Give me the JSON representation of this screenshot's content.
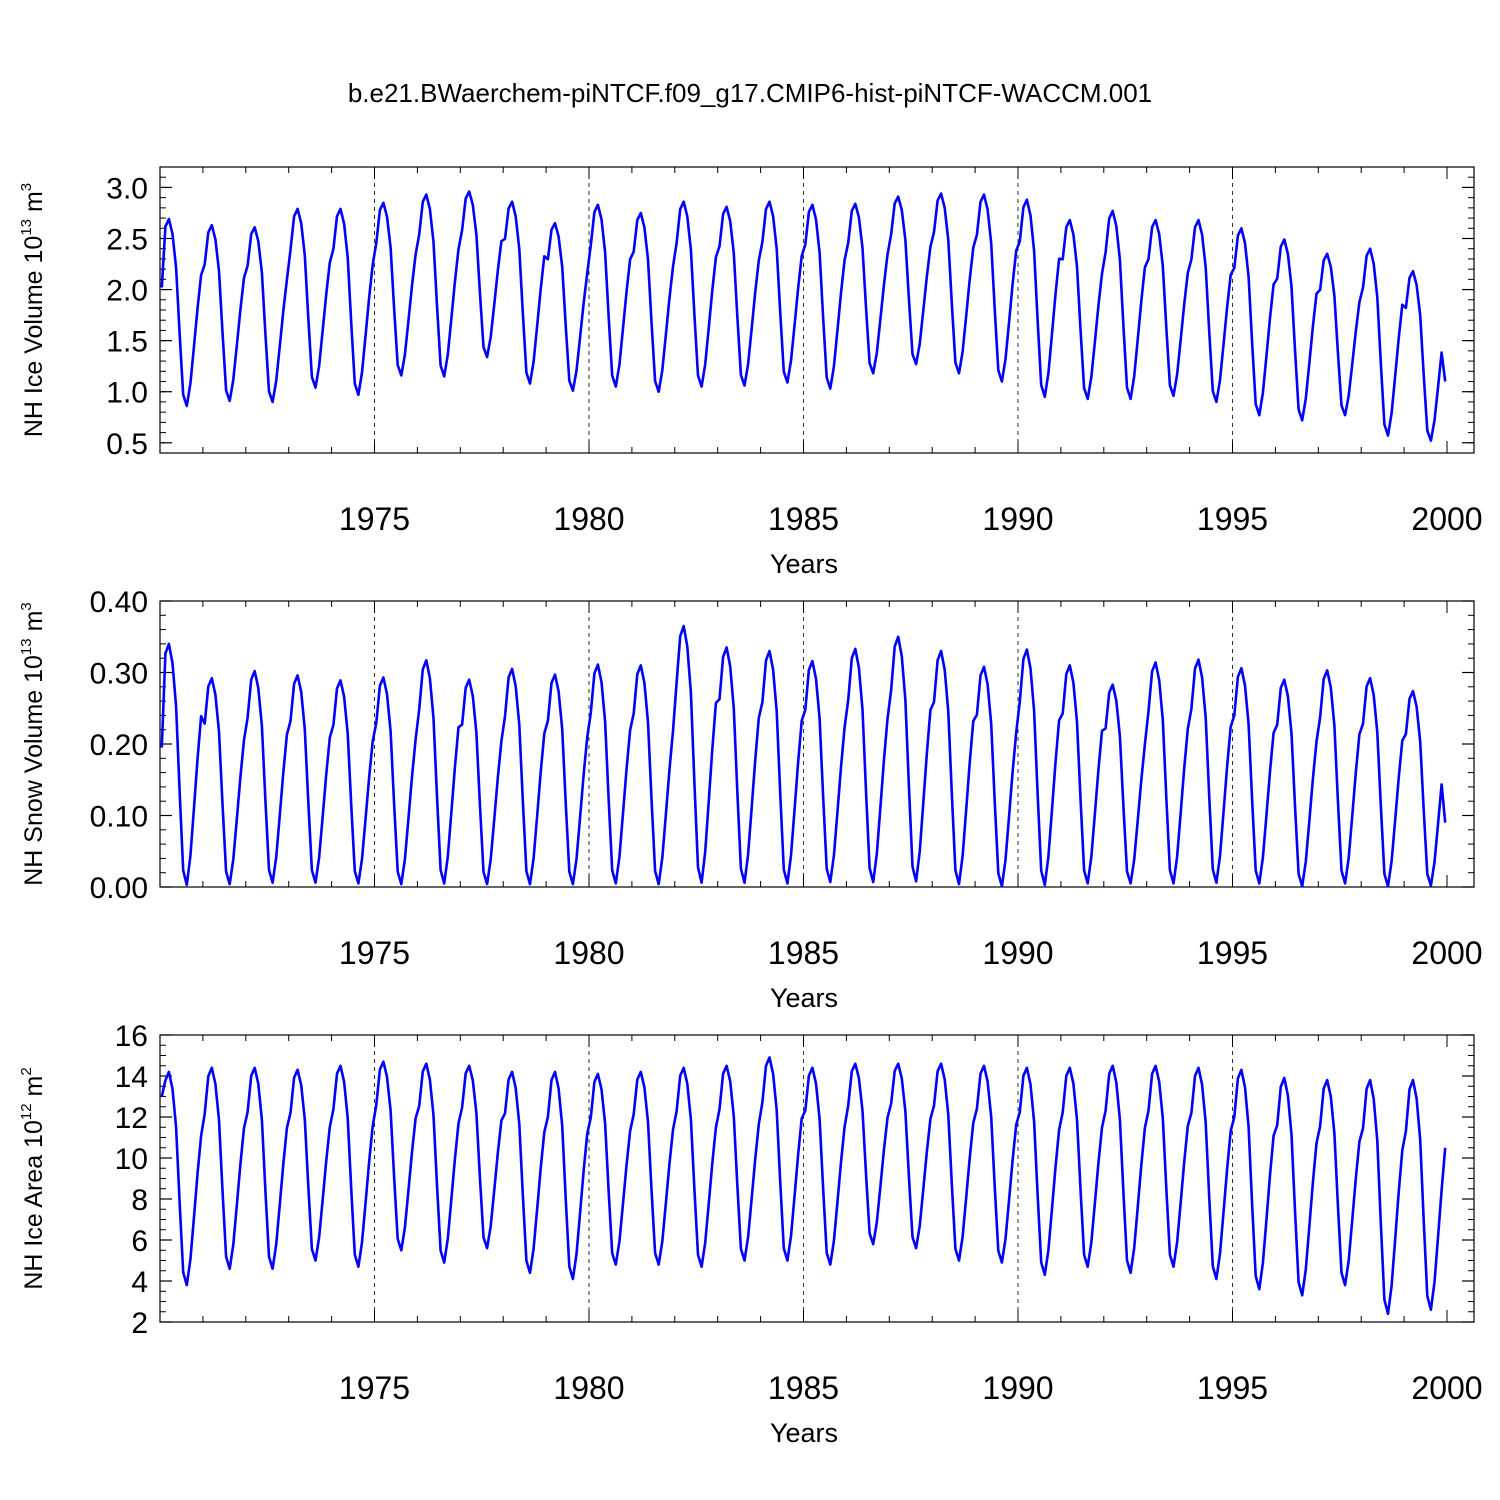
{
  "title": "b.e21.BWaerchem-piNTCF.f09_g17.CMIP6-hist-piNTCF-WACCM.001",
  "chart_data": [
    {
      "type": "line",
      "name": "ice_volume",
      "ylabel_main": "NH Ice Volume 10",
      "ylabel_exp": "13",
      "ylabel_unit": " m",
      "ylabel_unit_exp": "3",
      "xlabel": "Years",
      "xlim": [
        1970.0,
        2000.0
      ],
      "ylim": [
        0.4,
        3.2
      ],
      "xticks": [
        1975,
        1980,
        1985,
        1990,
        1995,
        2000
      ],
      "xtick_labels": [
        "1975",
        "1980",
        "1985",
        "1990",
        "1995",
        "2000"
      ],
      "yticks": [
        0.5,
        1.0,
        1.5,
        2.0,
        2.5,
        3.0
      ],
      "ytick_labels": [
        "0.5",
        "1.0",
        "1.5",
        "2.0",
        "2.5",
        "3.0"
      ],
      "ytick_minor_step": 0.1,
      "line_color": "#0000ff",
      "series": [
        {
          "name": "NH Ice Volume",
          "start_value": 2.02,
          "end_value": 1.1,
          "annual_max": [
            2.69,
            2.63,
            2.61,
            2.79,
            2.79,
            2.85,
            2.93,
            2.96,
            2.86,
            2.65,
            2.83,
            2.75,
            2.86,
            2.81,
            2.86,
            2.83,
            2.84,
            2.91,
            2.94,
            2.93,
            2.88,
            2.68,
            2.77,
            2.68,
            2.68,
            2.6,
            2.49,
            2.35,
            2.4,
            2.18
          ],
          "annual_min": [
            0.86,
            0.91,
            0.9,
            1.04,
            0.97,
            1.16,
            1.15,
            1.34,
            1.08,
            1.01,
            1.05,
            1.0,
            1.05,
            1.06,
            1.09,
            1.03,
            1.18,
            1.27,
            1.18,
            1.1,
            0.95,
            0.93,
            0.93,
            0.96,
            0.9,
            0.77,
            0.72,
            0.77,
            0.57,
            0.52
          ]
        }
      ]
    },
    {
      "type": "line",
      "name": "snow_volume",
      "ylabel_main": "NH Snow Volume 10",
      "ylabel_exp": "13",
      "ylabel_unit": " m",
      "ylabel_unit_exp": "3",
      "xlabel": "Years",
      "xlim": [
        1970.0,
        2000.0
      ],
      "ylim": [
        0.0,
        0.4
      ],
      "xticks": [
        1975,
        1980,
        1985,
        1990,
        1995,
        2000
      ],
      "xtick_labels": [
        "1975",
        "1980",
        "1985",
        "1990",
        "1995",
        "2000"
      ],
      "yticks": [
        0.0,
        0.1,
        0.2,
        0.3,
        0.4
      ],
      "ytick_labels": [
        "0.00",
        "0.10",
        "0.20",
        "0.30",
        "0.40"
      ],
      "ytick_minor_step": 0.02,
      "line_color": "#0000ff",
      "series": [
        {
          "name": "NH Snow Volume",
          "start_value": 0.195,
          "end_value": 0.09,
          "annual_max": [
            0.34,
            0.292,
            0.302,
            0.296,
            0.289,
            0.293,
            0.317,
            0.29,
            0.305,
            0.297,
            0.311,
            0.31,
            0.365,
            0.335,
            0.33,
            0.316,
            0.333,
            0.35,
            0.33,
            0.308,
            0.332,
            0.31,
            0.283,
            0.314,
            0.318,
            0.306,
            0.29,
            0.303,
            0.292,
            0.274
          ],
          "annual_min": [
            0.003,
            0.004,
            0.006,
            0.006,
            0.005,
            0.004,
            0.005,
            0.004,
            0.004,
            0.004,
            0.005,
            0.004,
            0.006,
            0.006,
            0.005,
            0.007,
            0.007,
            0.008,
            0.004,
            0.001,
            0.003,
            0.005,
            0.005,
            0.005,
            0.006,
            0.005,
            0.001,
            0.005,
            0.001,
            0.002
          ]
        }
      ]
    },
    {
      "type": "line",
      "name": "ice_area",
      "ylabel_main": "NH Ice Area 10",
      "ylabel_exp": "12",
      "ylabel_unit": " m",
      "ylabel_unit_exp": "2",
      "xlabel": "Years",
      "xlim": [
        1970.0,
        2000.0
      ],
      "ylim": [
        2.0,
        16.0
      ],
      "xticks": [
        1975,
        1980,
        1985,
        1990,
        1995,
        2000
      ],
      "xtick_labels": [
        "1975",
        "1980",
        "1985",
        "1990",
        "1995",
        "2000"
      ],
      "yticks": [
        2,
        4,
        6,
        8,
        10,
        12,
        14,
        16
      ],
      "ytick_labels": [
        "2",
        "4",
        "6",
        "8",
        "10",
        "12",
        "14",
        "16"
      ],
      "ytick_minor_step": 0.5,
      "line_color": "#0000ff",
      "series": [
        {
          "name": "NH Ice Area",
          "start_value": 13.0,
          "end_value": 10.5,
          "annual_max": [
            14.2,
            14.4,
            14.4,
            14.3,
            14.5,
            14.7,
            14.6,
            14.5,
            14.2,
            14.2,
            14.1,
            14.2,
            14.4,
            14.5,
            14.9,
            14.4,
            14.6,
            14.6,
            14.6,
            14.5,
            14.4,
            14.4,
            14.5,
            14.5,
            14.4,
            14.3,
            13.9,
            13.8,
            13.8,
            13.8
          ],
          "annual_min": [
            3.8,
            4.6,
            4.6,
            5.0,
            4.7,
            5.5,
            4.9,
            5.6,
            4.4,
            4.1,
            4.8,
            4.8,
            4.7,
            5.0,
            5.0,
            4.8,
            5.8,
            5.6,
            5.0,
            4.9,
            4.3,
            4.7,
            4.4,
            4.7,
            4.1,
            3.6,
            3.3,
            3.8,
            2.4,
            2.6
          ]
        }
      ]
    }
  ]
}
